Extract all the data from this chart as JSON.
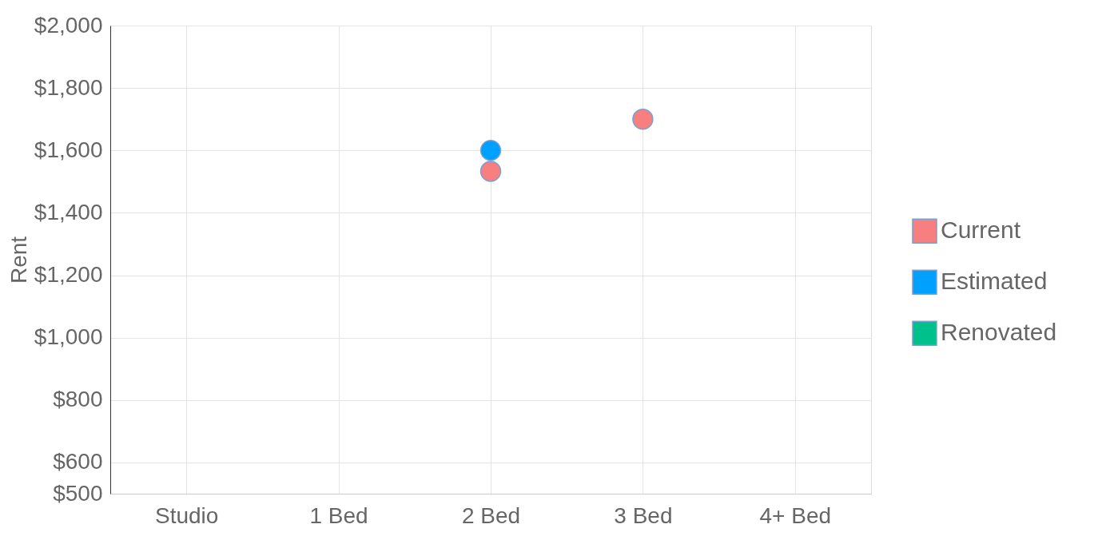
{
  "chart_data": {
    "type": "scatter",
    "ylabel": "Rent",
    "categories": [
      "Studio",
      "1 Bed",
      "2 Bed",
      "3 Bed",
      "4+ Bed"
    ],
    "series": [
      {
        "name": "Current",
        "color": "#f77f7f",
        "values": [
          null,
          null,
          1533,
          1700,
          null
        ]
      },
      {
        "name": "Estimated",
        "color": "#00a0ff",
        "values": [
          null,
          null,
          1600,
          null,
          null
        ]
      },
      {
        "name": "Renovated",
        "color": "#00c08b",
        "values": [
          null,
          null,
          null,
          null,
          null
        ]
      }
    ],
    "ylim": [
      500,
      2000
    ],
    "yticks": [
      {
        "value": 500,
        "label": "$500"
      },
      {
        "value": 600,
        "label": "$600"
      },
      {
        "value": 800,
        "label": "$800"
      },
      {
        "value": 1000,
        "label": "$1,000"
      },
      {
        "value": 1200,
        "label": "$1,200"
      },
      {
        "value": 1400,
        "label": "$1,400"
      },
      {
        "value": 1600,
        "label": "$1,600"
      },
      {
        "value": 1800,
        "label": "$1,800"
      },
      {
        "value": 2000,
        "label": "$2,000"
      }
    ],
    "grid": true,
    "legend": "right",
    "marker": "circle"
  }
}
